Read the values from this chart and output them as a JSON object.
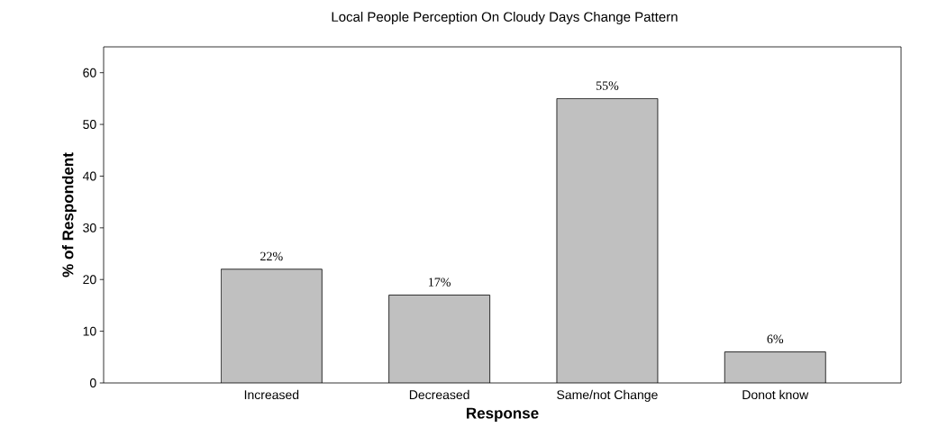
{
  "chart_data": {
    "type": "bar",
    "title": "Local People Perception On Cloudy Days Change Pattern",
    "xlabel": "Response",
    "ylabel": "% of Respondent",
    "categories": [
      "Increased",
      "Decreased",
      "Same/not Change",
      "Donot know"
    ],
    "values": [
      22,
      17,
      55,
      6
    ],
    "value_labels": [
      "22%",
      "17%",
      "55%",
      "6%"
    ],
    "color": "#c0c0c0",
    "ylim": [
      0,
      65
    ],
    "yticks": [
      0,
      10,
      20,
      30,
      40,
      50,
      60
    ]
  }
}
